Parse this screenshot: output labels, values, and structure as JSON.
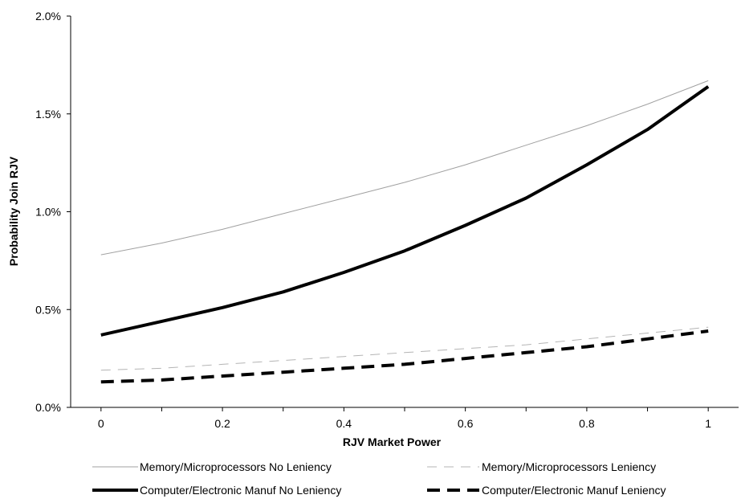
{
  "chart_data": {
    "type": "line",
    "title": "",
    "xlabel": "RJV Market Power",
    "ylabel": "Probability Join RJV",
    "x": [
      0,
      0.1,
      0.2,
      0.3,
      0.4,
      0.5,
      0.6,
      0.7,
      0.8,
      0.9,
      1.0
    ],
    "xlim": [
      -0.05,
      1.05
    ],
    "ylim": [
      0,
      0.02
    ],
    "x_ticks": [
      0,
      0.2,
      0.4,
      0.6,
      0.8,
      1.0
    ],
    "x_tick_labels": [
      "0",
      "0.2",
      "0.4",
      "0.6",
      "0.8",
      "1"
    ],
    "y_ticks": [
      0,
      0.005,
      0.01,
      0.015,
      0.02
    ],
    "y_tick_labels": [
      "0.0%",
      "0.5%",
      "1.0%",
      "1.5%",
      "2.0%"
    ],
    "grid": false,
    "legend_position": "bottom",
    "series": [
      {
        "name": "Memory/Microprocessors No Leniency",
        "values": [
          0.0078,
          0.0084,
          0.0091,
          0.0099,
          0.0107,
          0.0115,
          0.0124,
          0.0134,
          0.0144,
          0.0155,
          0.0167
        ],
        "color": "#a0a0a0",
        "style": "solid",
        "weight": "thin"
      },
      {
        "name": "Memory/Microprocessors Leniency",
        "values": [
          0.0019,
          0.002,
          0.0022,
          0.0024,
          0.0026,
          0.0028,
          0.003,
          0.0032,
          0.0035,
          0.0038,
          0.0041
        ],
        "color": "#b4b4b4",
        "style": "dashed",
        "weight": "thin"
      },
      {
        "name": "Computer/Electronic Manuf No Leniency",
        "values": [
          0.0037,
          0.0044,
          0.0051,
          0.0059,
          0.0069,
          0.008,
          0.0093,
          0.0107,
          0.0124,
          0.0142,
          0.0164
        ],
        "color": "#000000",
        "style": "solid",
        "weight": "thick"
      },
      {
        "name": "Computer/Electronic Manuf Leniency",
        "values": [
          0.0013,
          0.0014,
          0.0016,
          0.0018,
          0.002,
          0.0022,
          0.0025,
          0.0028,
          0.0031,
          0.0035,
          0.0039
        ],
        "color": "#000000",
        "style": "dashed",
        "weight": "thick"
      }
    ]
  }
}
